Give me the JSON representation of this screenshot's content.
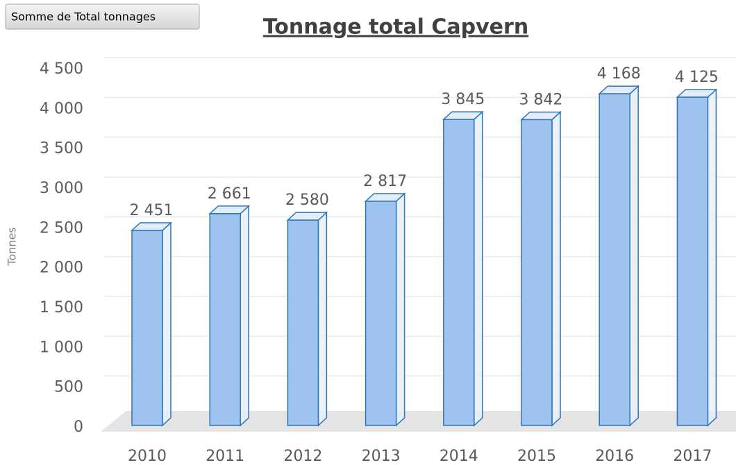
{
  "chart_data": {
    "type": "bar3d",
    "field_button": "Somme de Total tonnages",
    "title": "Tonnage total Capvern",
    "y_label": "Tonnes",
    "categories": [
      "2010",
      "2011",
      "2012",
      "2013",
      "2014",
      "2015",
      "2016",
      "2017"
    ],
    "values": [
      2451,
      2661,
      2580,
      2817,
      3845,
      3842,
      4168,
      4125
    ],
    "value_labels": [
      "2 451",
      "2 661",
      "2 580",
      "2 817",
      "3 845",
      "3 842",
      "4 168",
      "4 125"
    ],
    "color": "#9dc3ee",
    "ylim": [
      0,
      4500
    ],
    "yticks": [
      0,
      500,
      {
        "value": 1000,
        "label": "1 000"
      },
      {
        "value": 1500,
        "label": "1 500"
      },
      {
        "value": 2000,
        "label": "2 000"
      },
      {
        "value": 2500,
        "label": "2 500"
      },
      {
        "value": 3000,
        "label": "3 000"
      },
      {
        "value": 3500,
        "label": "3 500"
      },
      {
        "value": 4000,
        "label": "4 000"
      },
      {
        "value": 4500,
        "label": "4 500"
      }
    ],
    "grid": true
  }
}
